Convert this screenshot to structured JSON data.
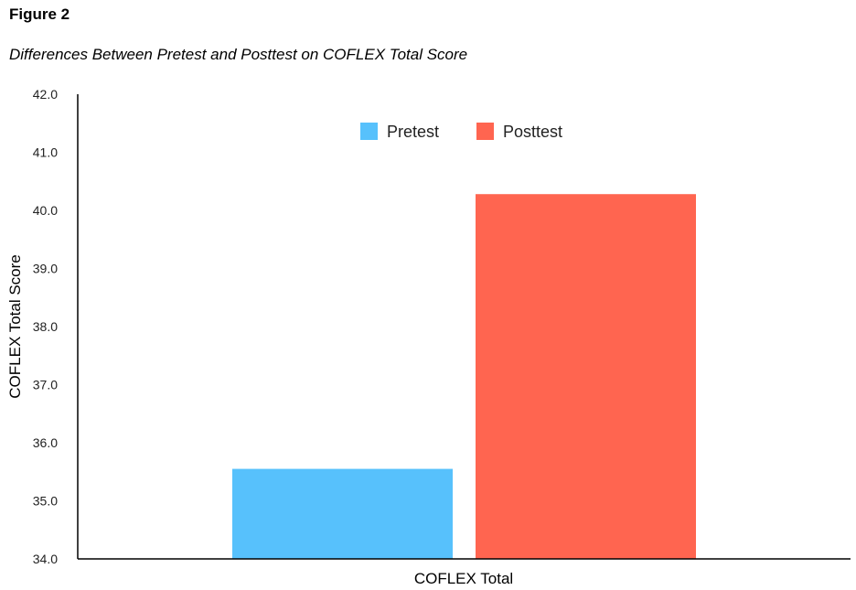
{
  "figure": {
    "label": "Figure 2",
    "title": "Differences Between Pretest and Posttest on COFLEX Total Score"
  },
  "chart_data": {
    "type": "bar",
    "categories": [
      "COFLEX Total"
    ],
    "series": [
      {
        "name": "Pretest",
        "values": [
          35.55
        ],
        "color": "#57C1FC"
      },
      {
        "name": "Posttest",
        "values": [
          40.28
        ],
        "color": "#FF6550"
      }
    ],
    "xlabel": "COFLEX Total",
    "ylabel": "COFLEX Total Score",
    "ylim": [
      34.0,
      42.0
    ],
    "yticks": [
      "34.0",
      "35.0",
      "36.0",
      "37.0",
      "38.0",
      "39.0",
      "40.0",
      "41.0",
      "42.0"
    ],
    "grid": false,
    "legend_position": "top-center"
  }
}
